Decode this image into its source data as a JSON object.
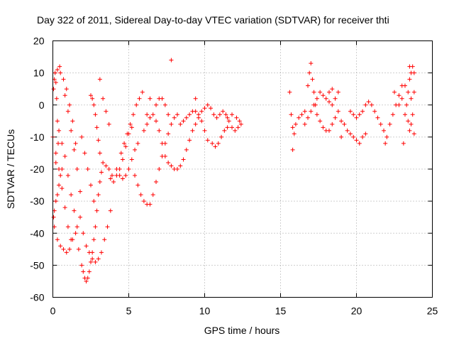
{
  "chart_data": {
    "type": "scatter",
    "title": "Day 322 of 2011, Sidereal Day-to-day VTEC variation (SDTVAR) for receiver thti",
    "xlabel": "GPS time / hours",
    "ylabel": "SDTVAR / TECUs",
    "xlim": [
      0,
      25
    ],
    "ylim": [
      -60,
      20
    ],
    "xticks": [
      "0",
      "5",
      "10",
      "15",
      "20",
      "25"
    ],
    "yticks": [
      "-60",
      "-50",
      "-40",
      "-30",
      "-20",
      "-10",
      "0",
      "10",
      "20"
    ],
    "grid": true,
    "marker": "+",
    "color": "#ff0000",
    "series": [
      {
        "points": [
          [
            0.0,
            -10
          ],
          [
            0.05,
            5
          ],
          [
            0.1,
            8
          ],
          [
            0.15,
            10
          ],
          [
            0.2,
            7
          ],
          [
            0.25,
            2
          ],
          [
            0.3,
            -5
          ],
          [
            0.35,
            -12
          ],
          [
            0.05,
            -35
          ],
          [
            0.1,
            -33
          ],
          [
            0.2,
            -30
          ],
          [
            0.3,
            -28
          ],
          [
            0.4,
            -25
          ],
          [
            0.5,
            -22
          ],
          [
            0.6,
            -20
          ],
          [
            0.1,
            -38
          ],
          [
            0.3,
            -42
          ],
          [
            0.5,
            -44
          ],
          [
            0.7,
            -45
          ],
          [
            0.9,
            -46
          ],
          [
            1.1,
            -45
          ],
          [
            1.3,
            -42
          ],
          [
            0.2,
            -15
          ],
          [
            0.4,
            -20
          ],
          [
            0.6,
            -26
          ],
          [
            0.8,
            -32
          ],
          [
            1.0,
            -38
          ],
          [
            1.2,
            -42
          ],
          [
            0.3,
            11
          ],
          [
            0.5,
            10
          ],
          [
            0.7,
            8
          ],
          [
            0.9,
            5
          ],
          [
            1.1,
            0
          ],
          [
            1.3,
            -5
          ],
          [
            1.5,
            -12
          ],
          [
            0.4,
            -8
          ],
          [
            0.6,
            -12
          ],
          [
            0.8,
            -16
          ],
          [
            1.0,
            -22
          ],
          [
            1.2,
            -28
          ],
          [
            1.4,
            -33
          ],
          [
            1.6,
            -38
          ],
          [
            0.45,
            12
          ],
          [
            0.2,
            -18
          ],
          [
            0.8,
            3
          ],
          [
            1.0,
            -2
          ],
          [
            1.2,
            -8
          ],
          [
            1.4,
            -14
          ],
          [
            1.6,
            -20
          ],
          [
            1.8,
            -27
          ],
          [
            1.5,
            -40
          ],
          [
            1.7,
            -45
          ],
          [
            1.9,
            -50
          ],
          [
            2.0,
            -52
          ],
          [
            2.1,
            -54
          ],
          [
            2.2,
            -55
          ],
          [
            2.3,
            -54
          ],
          [
            2.4,
            -52
          ],
          [
            2.5,
            -49
          ],
          [
            2.6,
            -46
          ],
          [
            2.7,
            -42
          ],
          [
            2.8,
            -38
          ],
          [
            2.9,
            -33
          ],
          [
            3.0,
            -28
          ],
          [
            3.1,
            -24
          ],
          [
            3.2,
            -21
          ],
          [
            1.8,
            -35
          ],
          [
            2.0,
            -40
          ],
          [
            2.2,
            -44
          ],
          [
            2.4,
            -46
          ],
          [
            2.6,
            -48
          ],
          [
            2.8,
            -49
          ],
          [
            3.0,
            -48
          ],
          [
            3.2,
            -46
          ],
          [
            3.4,
            -42
          ],
          [
            3.6,
            -38
          ],
          [
            3.8,
            -33
          ],
          [
            1.9,
            -10
          ],
          [
            2.1,
            -15
          ],
          [
            2.3,
            -20
          ],
          [
            2.5,
            -25
          ],
          [
            2.7,
            -30
          ],
          [
            2.5,
            3
          ],
          [
            2.6,
            2
          ],
          [
            2.7,
            0
          ],
          [
            2.8,
            -3
          ],
          [
            2.9,
            -7
          ],
          [
            3.0,
            -11
          ],
          [
            3.1,
            -15
          ],
          [
            3.1,
            8
          ],
          [
            3.3,
            2
          ],
          [
            3.5,
            -2
          ],
          [
            3.7,
            -6
          ],
          [
            3.3,
            -18
          ],
          [
            3.5,
            -19
          ],
          [
            3.7,
            -20
          ],
          [
            3.9,
            -22
          ],
          [
            3.8,
            -23
          ],
          [
            4.0,
            -24
          ],
          [
            4.2,
            -22
          ],
          [
            4.4,
            -20
          ],
          [
            4.6,
            -17
          ],
          [
            4.8,
            -13
          ],
          [
            5.0,
            -9
          ],
          [
            5.2,
            -7
          ],
          [
            4.2,
            -20
          ],
          [
            4.4,
            -22
          ],
          [
            4.6,
            -23
          ],
          [
            4.8,
            -22
          ],
          [
            5.0,
            -20
          ],
          [
            5.2,
            -17
          ],
          [
            5.4,
            -14
          ],
          [
            5.6,
            -12
          ],
          [
            4.5,
            -15
          ],
          [
            4.7,
            -12
          ],
          [
            4.9,
            -9
          ],
          [
            5.1,
            -6
          ],
          [
            5.3,
            -3
          ],
          [
            5.5,
            0
          ],
          [
            5.7,
            2
          ],
          [
            5.9,
            4
          ],
          [
            5.4,
            -22
          ],
          [
            5.6,
            -25
          ],
          [
            5.8,
            -28
          ],
          [
            6.0,
            -30
          ],
          [
            6.2,
            -31
          ],
          [
            6.4,
            -31
          ],
          [
            6.6,
            -28
          ],
          [
            6.8,
            -24
          ],
          [
            7.0,
            -20
          ],
          [
            7.2,
            -16
          ],
          [
            7.4,
            -12
          ],
          [
            7.6,
            -9
          ],
          [
            7.8,
            -6
          ],
          [
            8.0,
            -4
          ],
          [
            8.2,
            -3
          ],
          [
            6.0,
            -8
          ],
          [
            6.2,
            -6
          ],
          [
            6.4,
            -4
          ],
          [
            6.6,
            -3
          ],
          [
            6.8,
            -5
          ],
          [
            7.0,
            -8
          ],
          [
            7.2,
            -12
          ],
          [
            7.4,
            -16
          ],
          [
            7.6,
            -18
          ],
          [
            7.8,
            -19
          ],
          [
            8.0,
            -20
          ],
          [
            8.2,
            -20
          ],
          [
            8.4,
            -19
          ],
          [
            8.6,
            -17
          ],
          [
            8.8,
            -14
          ],
          [
            9.0,
            -11
          ],
          [
            6.8,
            0
          ],
          [
            7.0,
            2
          ],
          [
            7.2,
            2
          ],
          [
            7.4,
            0
          ],
          [
            7.6,
            -3
          ],
          [
            7.8,
            14
          ],
          [
            8.4,
            -6
          ],
          [
            8.6,
            -5
          ],
          [
            8.8,
            -4
          ],
          [
            9.0,
            -3
          ],
          [
            9.2,
            -2
          ],
          [
            9.4,
            -2
          ],
          [
            9.6,
            -3
          ],
          [
            9.8,
            -5
          ],
          [
            10.0,
            -8
          ],
          [
            10.2,
            -11
          ],
          [
            9.2,
            -8
          ],
          [
            9.4,
            -6
          ],
          [
            9.6,
            -4
          ],
          [
            9.8,
            -2
          ],
          [
            10.0,
            -1
          ],
          [
            10.2,
            0
          ],
          [
            10.4,
            -1
          ],
          [
            10.6,
            -3
          ],
          [
            9.4,
            2
          ],
          [
            10.5,
            -12
          ],
          [
            10.7,
            -13
          ],
          [
            10.9,
            -12
          ],
          [
            11.1,
            -10
          ],
          [
            11.3,
            -8
          ],
          [
            11.5,
            -7
          ],
          [
            10.8,
            -4
          ],
          [
            11.0,
            -3
          ],
          [
            11.2,
            -2
          ],
          [
            11.4,
            -3
          ],
          [
            11.6,
            -5
          ],
          [
            11.8,
            -7
          ],
          [
            12.0,
            -8
          ],
          [
            11.5,
            -4
          ],
          [
            11.8,
            -3
          ],
          [
            12.1,
            -4
          ],
          [
            12.3,
            -5
          ],
          [
            12.4,
            -6
          ],
          [
            12.2,
            -7
          ],
          [
            6.2,
            -3
          ],
          [
            6.4,
            2
          ],
          [
            15.6,
            4
          ],
          [
            15.7,
            -3
          ],
          [
            15.8,
            -7
          ],
          [
            15.9,
            -9
          ],
          [
            15.8,
            -14
          ],
          [
            16.0,
            -6
          ],
          [
            16.2,
            -4
          ],
          [
            16.4,
            -3
          ],
          [
            16.6,
            -2
          ],
          [
            16.8,
            6
          ],
          [
            16.9,
            10
          ],
          [
            17.0,
            13
          ],
          [
            17.1,
            8
          ],
          [
            17.2,
            4
          ],
          [
            17.3,
            0
          ],
          [
            17.4,
            -3
          ],
          [
            17.6,
            -5
          ],
          [
            17.8,
            -7
          ],
          [
            18.0,
            -8
          ],
          [
            18.2,
            -8
          ],
          [
            18.4,
            -6
          ],
          [
            18.6,
            -4
          ],
          [
            18.8,
            -2
          ],
          [
            19.0,
            -5
          ],
          [
            16.6,
            -6
          ],
          [
            16.8,
            -4
          ],
          [
            17.0,
            -2
          ],
          [
            17.2,
            0
          ],
          [
            17.4,
            2
          ],
          [
            17.6,
            4
          ],
          [
            17.8,
            3
          ],
          [
            18.0,
            2
          ],
          [
            18.2,
            1
          ],
          [
            18.4,
            0
          ],
          [
            18.6,
            2
          ],
          [
            18.8,
            4
          ],
          [
            19.0,
            -10
          ],
          [
            18.2,
            4
          ],
          [
            18.4,
            5
          ],
          [
            19.2,
            -6
          ],
          [
            19.4,
            -8
          ],
          [
            19.6,
            -9
          ],
          [
            19.8,
            -10
          ],
          [
            20.0,
            -11
          ],
          [
            20.2,
            -12
          ],
          [
            20.4,
            -10
          ],
          [
            20.6,
            -9
          ],
          [
            19.6,
            -2
          ],
          [
            19.8,
            -3
          ],
          [
            20.0,
            -4
          ],
          [
            20.2,
            -3
          ],
          [
            20.4,
            -2
          ],
          [
            20.6,
            0
          ],
          [
            20.8,
            1
          ],
          [
            21.0,
            0
          ],
          [
            21.2,
            -2
          ],
          [
            21.4,
            -4
          ],
          [
            21.6,
            -6
          ],
          [
            21.8,
            -8
          ],
          [
            22.0,
            -10
          ],
          [
            21.9,
            -12
          ],
          [
            22.2,
            -6
          ],
          [
            22.4,
            -3
          ],
          [
            22.6,
            0
          ],
          [
            22.8,
            3
          ],
          [
            23.0,
            6
          ],
          [
            22.5,
            4
          ],
          [
            23.1,
            -12
          ],
          [
            23.2,
            -3
          ],
          [
            23.3,
            0
          ],
          [
            23.4,
            4
          ],
          [
            23.5,
            8
          ],
          [
            23.6,
            10
          ],
          [
            23.7,
            12
          ],
          [
            23.8,
            10
          ],
          [
            23.8,
            4
          ],
          [
            23.7,
            -3
          ],
          [
            23.6,
            -6
          ],
          [
            23.5,
            -8
          ],
          [
            23.4,
            -5
          ],
          [
            23.2,
            6
          ],
          [
            23.0,
            2
          ],
          [
            22.8,
            0
          ],
          [
            23.6,
            2
          ],
          [
            23.8,
            -9
          ],
          [
            23.5,
            12
          ]
        ]
      }
    ]
  }
}
